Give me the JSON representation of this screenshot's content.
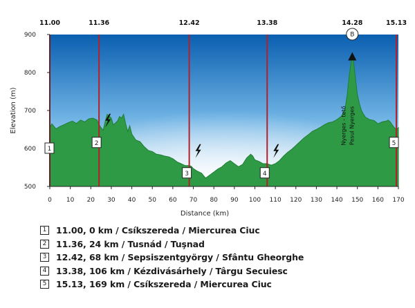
{
  "chart_data": {
    "type": "area",
    "xlabel": "Distance (km)",
    "ylabel": "Elevation (m)",
    "xlim": [
      0,
      170
    ],
    "ylim": [
      500,
      900
    ],
    "x_ticks": [
      "0",
      "10",
      "20",
      "30",
      "40",
      "50",
      "60",
      "70",
      "80",
      "90",
      "100",
      "110",
      "120",
      "130",
      "140",
      "150",
      "160",
      "170"
    ],
    "y_ticks": [
      "500",
      "600",
      "700",
      "800",
      "900"
    ],
    "grid": false,
    "colors": {
      "fill": "#2e9a45",
      "fill_edge": "#1f7d34",
      "sky_top": "#0a5fb0",
      "sky_bottom": "#ffffff",
      "marker_line": "#b3202a"
    },
    "profile": [
      [
        0,
        655
      ],
      [
        1,
        665
      ],
      [
        3,
        652
      ],
      [
        5,
        658
      ],
      [
        7,
        663
      ],
      [
        9,
        668
      ],
      [
        11,
        672
      ],
      [
        13,
        666
      ],
      [
        15,
        675
      ],
      [
        17,
        670
      ],
      [
        19,
        678
      ],
      [
        21,
        680
      ],
      [
        23,
        675
      ],
      [
        24,
        663
      ],
      [
        25,
        655
      ],
      [
        26,
        648
      ],
      [
        27,
        670
      ],
      [
        28,
        690
      ],
      [
        30,
        680
      ],
      [
        31,
        662
      ],
      [
        33,
        672
      ],
      [
        34,
        684
      ],
      [
        35,
        680
      ],
      [
        36,
        690
      ],
      [
        37,
        665
      ],
      [
        38,
        645
      ],
      [
        39,
        660
      ],
      [
        40,
        638
      ],
      [
        42,
        622
      ],
      [
        44,
        618
      ],
      [
        46,
        605
      ],
      [
        48,
        595
      ],
      [
        50,
        592
      ],
      [
        52,
        585
      ],
      [
        54,
        583
      ],
      [
        56,
        580
      ],
      [
        58,
        578
      ],
      [
        60,
        573
      ],
      [
        62,
        565
      ],
      [
        64,
        560
      ],
      [
        66,
        555
      ],
      [
        68,
        555
      ],
      [
        69,
        553
      ],
      [
        70,
        547
      ],
      [
        72,
        540
      ],
      [
        74,
        535
      ],
      [
        76,
        522
      ],
      [
        78,
        530
      ],
      [
        80,
        538
      ],
      [
        82,
        546
      ],
      [
        84,
        552
      ],
      [
        86,
        562
      ],
      [
        88,
        568
      ],
      [
        90,
        560
      ],
      [
        92,
        552
      ],
      [
        94,
        558
      ],
      [
        96,
        575
      ],
      [
        98,
        585
      ],
      [
        99,
        580
      ],
      [
        100,
        570
      ],
      [
        102,
        566
      ],
      [
        104,
        560
      ],
      [
        106,
        560
      ],
      [
        108,
        556
      ],
      [
        110,
        560
      ],
      [
        112,
        568
      ],
      [
        114,
        580
      ],
      [
        116,
        590
      ],
      [
        118,
        598
      ],
      [
        120,
        608
      ],
      [
        122,
        618
      ],
      [
        124,
        628
      ],
      [
        126,
        636
      ],
      [
        128,
        645
      ],
      [
        130,
        650
      ],
      [
        132,
        656
      ],
      [
        134,
        663
      ],
      [
        136,
        668
      ],
      [
        138,
        670
      ],
      [
        140,
        676
      ],
      [
        142,
        684
      ],
      [
        143,
        692
      ],
      [
        144,
        706
      ],
      [
        145,
        740
      ],
      [
        146,
        790
      ],
      [
        146.8,
        820
      ],
      [
        147.6,
        850
      ],
      [
        148.4,
        815
      ],
      [
        149.2,
        778
      ],
      [
        150,
        742
      ],
      [
        151,
        718
      ],
      [
        152,
        700
      ],
      [
        153,
        690
      ],
      [
        154,
        682
      ],
      [
        156,
        676
      ],
      [
        158,
        674
      ],
      [
        159,
        670
      ],
      [
        160,
        665
      ],
      [
        162,
        670
      ],
      [
        164,
        672
      ],
      [
        165,
        675
      ],
      [
        166,
        670
      ],
      [
        167,
        662
      ],
      [
        168,
        655
      ],
      [
        169,
        650
      ],
      [
        170,
        655
      ]
    ],
    "markers": [
      {
        "id": "1",
        "time": "11.00",
        "km": 0,
        "elev": 600,
        "lightning": false
      },
      {
        "id": "2",
        "time": "11.36",
        "km": 24,
        "elev": 615,
        "lightning": true
      },
      {
        "id": "3",
        "time": "12.42",
        "km": 68,
        "elev": 535,
        "lightning": true
      },
      {
        "id": "4",
        "time": "13.38",
        "km": 106,
        "elev": 535,
        "lightning": true
      },
      {
        "id": "5",
        "time": "15.13",
        "km": 169,
        "elev": 615,
        "lightning": false
      }
    ],
    "summit": {
      "id": "B",
      "time": "14.28",
      "km": 147.5,
      "elev": 850,
      "label1": "Nyerges - tető",
      "label2": "Pasul Nyerges"
    },
    "legend": [
      {
        "id": "1",
        "text": "11.00, 0 km / Csíkszereda / Miercurea Ciuc"
      },
      {
        "id": "2",
        "text": "11.36, 24 km / Tusnád / Tuşnad"
      },
      {
        "id": "3",
        "text": "12.42, 68 km / Sepsiszentgyörgy / Sfântu Gheorghe"
      },
      {
        "id": "4",
        "text": "13.38, 106 km / Kézdivásárhely / Târgu Secuiesc"
      },
      {
        "id": "5",
        "text": "15.13, 169 km / Csíkszereda / Miercurea Ciuc"
      }
    ]
  }
}
